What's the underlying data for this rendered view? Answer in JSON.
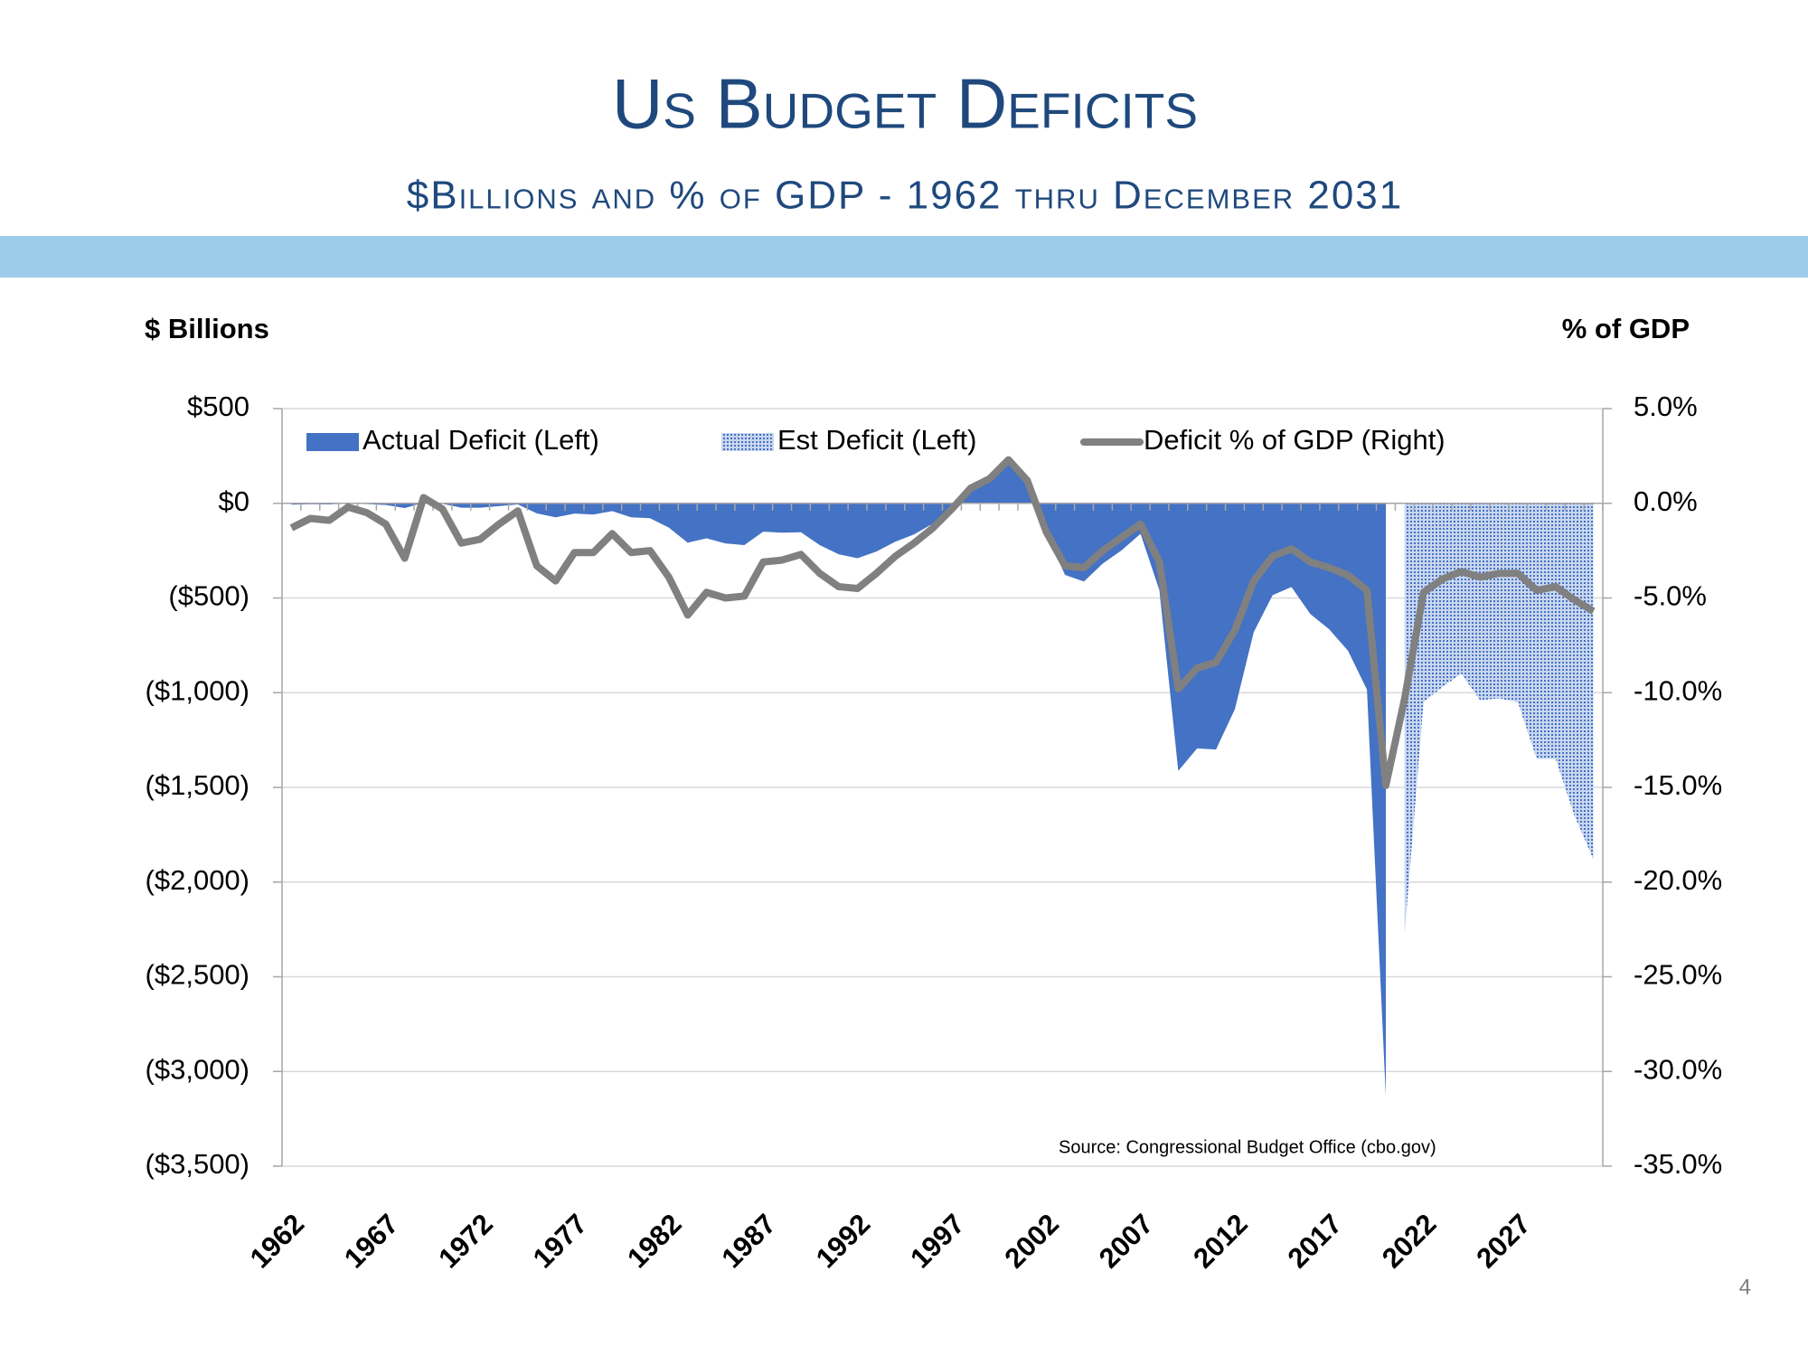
{
  "chart_data": {
    "type": "combo",
    "title": "Us Budget Deficits",
    "subtitle": "$Billions and % of GDP - 1962 thru December 2031",
    "ylabel": "$ Billions",
    "y2label": "% of GDP",
    "source": "Source:  Congressional Budget Office (cbo.gov)",
    "page_number": "4",
    "categories": [
      "1962",
      null,
      null,
      null,
      null,
      "1967",
      null,
      null,
      null,
      null,
      "1972",
      null,
      null,
      null,
      null,
      "1977",
      null,
      null,
      null,
      null,
      "1982",
      null,
      null,
      null,
      null,
      "1987",
      null,
      null,
      null,
      null,
      "1992",
      null,
      null,
      null,
      null,
      "1997",
      null,
      null,
      null,
      null,
      "2002",
      null,
      null,
      null,
      null,
      "2007",
      null,
      null,
      null,
      null,
      "2012",
      null,
      null,
      null,
      null,
      "2017",
      null,
      null,
      null,
      null,
      "2022",
      null,
      null,
      null,
      null,
      "2027",
      null,
      null,
      null,
      null
    ],
    "series": [
      {
        "name": "Actual Deficit (Left)",
        "type": "area",
        "fill": "solid",
        "color": "#4472c4",
        "values": [
          -7,
          -5,
          -6,
          -1,
          -4,
          -9,
          -25,
          3,
          -3,
          -23,
          -23,
          -15,
          -6,
          -53,
          -74,
          -54,
          -59,
          -41,
          -74,
          -79,
          -128,
          -208,
          -185,
          -212,
          -221,
          -150,
          -155,
          -153,
          -221,
          -269,
          -290,
          -255,
          -203,
          -164,
          -107,
          -22,
          69,
          126,
          236,
          128,
          -158,
          -378,
          -413,
          -318,
          -248,
          -161,
          -459,
          -1413,
          -1294,
          -1300,
          -1087,
          -680,
          -485,
          -442,
          -585,
          -665,
          -779,
          -984,
          -3132,
          null,
          null,
          null,
          null,
          null,
          null,
          null,
          null,
          null,
          null,
          null
        ]
      },
      {
        "name": "Est Deficit (Left)",
        "type": "area",
        "fill": "dotted",
        "color": "#4472c4",
        "values": [
          null,
          null,
          null,
          null,
          null,
          null,
          null,
          null,
          null,
          null,
          null,
          null,
          null,
          null,
          null,
          null,
          null,
          null,
          null,
          null,
          null,
          null,
          null,
          null,
          null,
          null,
          null,
          null,
          null,
          null,
          null,
          null,
          null,
          null,
          null,
          null,
          null,
          null,
          null,
          null,
          null,
          null,
          null,
          null,
          null,
          null,
          null,
          null,
          null,
          null,
          null,
          null,
          null,
          null,
          null,
          null,
          null,
          null,
          null,
          -2270,
          -1050,
          -970,
          -900,
          -1040,
          -1030,
          -1050,
          -1350,
          -1350,
          -1650,
          -1880
        ]
      },
      {
        "name": "Deficit % of GDP (Right)",
        "type": "line",
        "axis": "y2",
        "color": "#808080",
        "values": [
          -1.3,
          -0.8,
          -0.9,
          -0.2,
          -0.5,
          -1.1,
          -2.9,
          0.3,
          -0.3,
          -2.1,
          -1.9,
          -1.1,
          -0.4,
          -3.3,
          -4.1,
          -2.6,
          -2.6,
          -1.6,
          -2.6,
          -2.5,
          -3.9,
          -5.9,
          -4.7,
          -5.0,
          -4.9,
          -3.1,
          -3.0,
          -2.7,
          -3.7,
          -4.4,
          -4.5,
          -3.7,
          -2.8,
          -2.1,
          -1.3,
          -0.3,
          0.8,
          1.3,
          2.3,
          1.2,
          -1.5,
          -3.3,
          -3.4,
          -2.5,
          -1.8,
          -1.1,
          -3.1,
          -9.8,
          -8.7,
          -8.4,
          -6.7,
          -4.1,
          -2.8,
          -2.4,
          -3.1,
          -3.4,
          -3.8,
          -4.6,
          -14.9,
          -10.3,
          -4.7,
          -4.0,
          -3.6,
          -3.9,
          -3.7,
          -3.7,
          -4.6,
          -4.4,
          -5.1,
          -5.7
        ]
      }
    ],
    "ylim": [
      -3500,
      500
    ],
    "yticks": [
      {
        "value": 500,
        "label": "$500"
      },
      {
        "value": 0,
        "label": "$0"
      },
      {
        "value": -500,
        "label": "($500)"
      },
      {
        "value": -1000,
        "label": "($1,000)"
      },
      {
        "value": -1500,
        "label": "($1,500)"
      },
      {
        "value": -2000,
        "label": "($2,000)"
      },
      {
        "value": -2500,
        "label": "($2,500)"
      },
      {
        "value": -3000,
        "label": "($3,000)"
      },
      {
        "value": -3500,
        "label": "($3,500)"
      }
    ],
    "negative_tick_color": "#ff0000",
    "y2lim": [
      -35,
      5
    ],
    "y2ticks": [
      {
        "value": 5,
        "label": "5.0%"
      },
      {
        "value": 0,
        "label": "0.0%"
      },
      {
        "value": -5,
        "label": "-5.0%"
      },
      {
        "value": -10,
        "label": "-10.0%"
      },
      {
        "value": -15,
        "label": "-15.0%"
      },
      {
        "value": -20,
        "label": "-20.0%"
      },
      {
        "value": -25,
        "label": "-25.0%"
      },
      {
        "value": -30,
        "label": "-30.0%"
      },
      {
        "value": -35,
        "label": "-35.0%"
      }
    ],
    "grid": true,
    "legend": "top"
  }
}
